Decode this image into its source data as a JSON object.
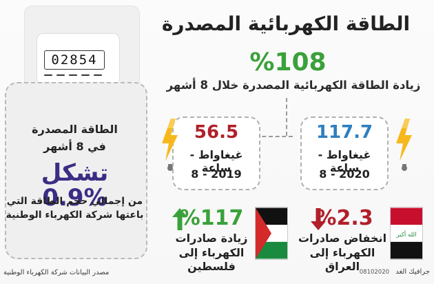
{
  "header": {
    "title": "الطاقة الكهربائية المصدرة",
    "headline_pct": "%108",
    "headline_sub": "زيادة الطاقة الكهربائية المصدرة خلال 8 أشهر"
  },
  "meter": {
    "reading": "02854"
  },
  "left_box": {
    "line1": "الطاقة المصدرة",
    "line2": "في 8 أشهر",
    "pct_line": "تشكل 0.9%",
    "desc": "من إجمالي حجم الطاقة التي باعتها شركة الكهرباء الوطنية"
  },
  "stats": {
    "y2020": {
      "value": "117.7",
      "unit": "غيغاواط - ساعة",
      "period": "8 - 2020"
    },
    "y2019": {
      "value": "56.5",
      "unit": "غيغاواط - ساعة",
      "period": "8 - 2019"
    }
  },
  "exports": {
    "palestine": {
      "pct": "%117",
      "line1": "زيادة صادرات",
      "line2": "الكهرباء إلى فلسطين"
    },
    "iraq": {
      "pct": "%2.3",
      "line1": "انخفاض صادرات",
      "line2": "الكهرباء إلى العراق",
      "flag_text": "الله أكبر"
    }
  },
  "footer": {
    "source": "مصدر البيانات شركة الكهرباء الوطنية",
    "credit": "جرافيك الغد",
    "date": "08102020"
  },
  "colors": {
    "green": "#3aa13a",
    "red": "#b11f2a",
    "blue": "#2e7fc0",
    "purple": "#3b2d84",
    "bolt_yellow": "#f6b81d"
  },
  "icons": {
    "bolt": "lightning-bolt-icon",
    "up": "arrow-up-icon",
    "down": "arrow-down-icon"
  }
}
